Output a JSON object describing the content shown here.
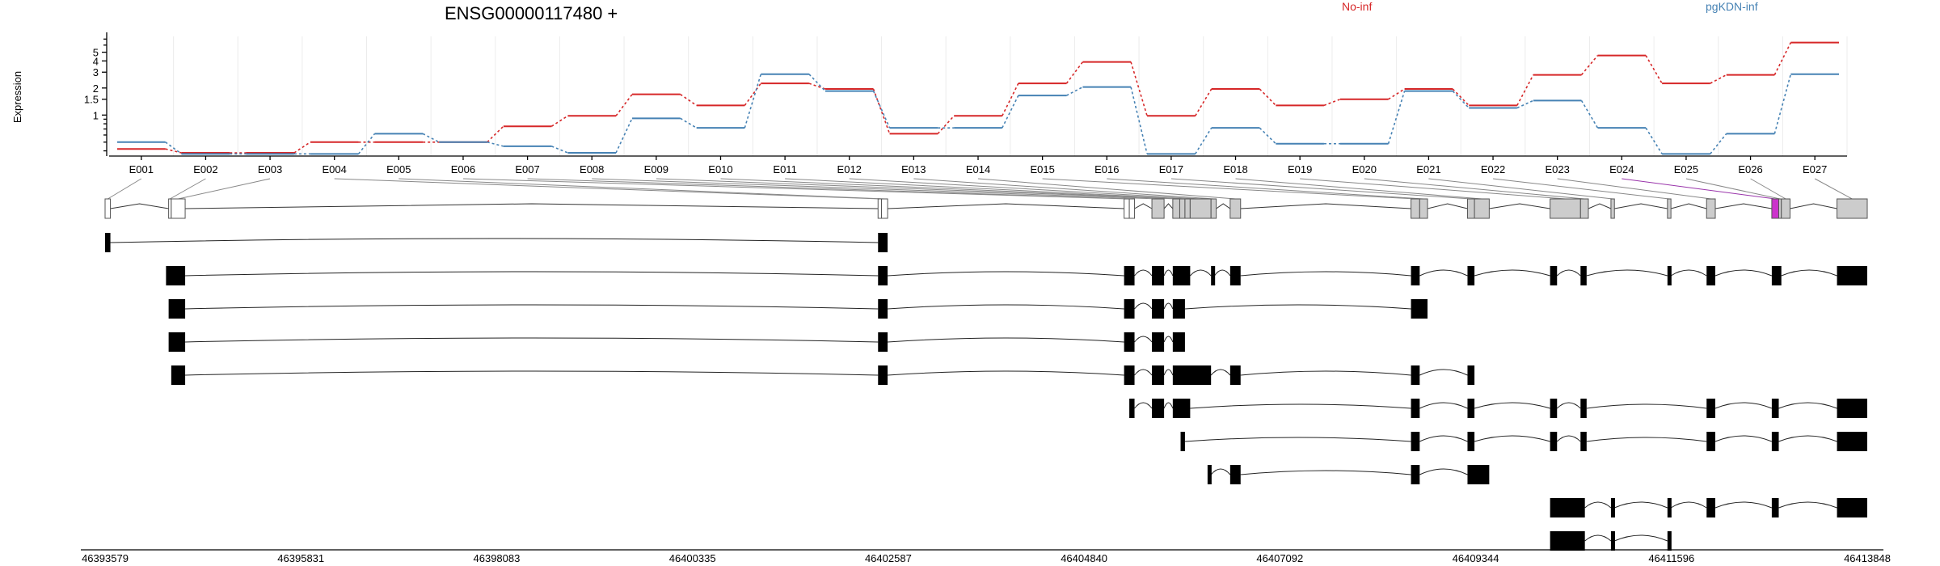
{
  "chart_data": {
    "type": "line",
    "title": "ENSG00000117480 +",
    "ylabel": "Expression",
    "xlabel": "",
    "y_scale": "log",
    "ylim": [
      0.35,
      7.5
    ],
    "y_ticks": [
      {
        "value": 1,
        "label": "1"
      },
      {
        "value": 1.5,
        "label": "1.5"
      },
      {
        "value": 2,
        "label": "2"
      },
      {
        "value": 3,
        "label": "3"
      },
      {
        "value": 4,
        "label": "4"
      },
      {
        "value": 5,
        "label": "5"
      }
    ],
    "categories": [
      "E001",
      "E002",
      "E003",
      "E004",
      "E005",
      "E006",
      "E007",
      "E008",
      "E009",
      "E010",
      "E011",
      "E012",
      "E013",
      "E014",
      "E015",
      "E016",
      "E017",
      "E018",
      "E019",
      "E020",
      "E021",
      "E022",
      "E023",
      "E024",
      "E025",
      "E026",
      "E027"
    ],
    "grid": true,
    "legend_position": "top",
    "series": [
      {
        "name": "No-inf",
        "color": "#d62728",
        "values": [
          0.42,
          0.38,
          0.38,
          0.5,
          0.5,
          0.5,
          0.75,
          0.98,
          1.7,
          1.28,
          2.25,
          1.95,
          0.62,
          0.98,
          2.25,
          3.9,
          0.98,
          1.95,
          1.28,
          1.5,
          1.95,
          1.28,
          2.8,
          4.6,
          2.25,
          2.8,
          6.4
        ]
      },
      {
        "name": "pgKDN-inf",
        "color": "#4682b4",
        "values": [
          0.5,
          0.37,
          0.37,
          0.37,
          0.62,
          0.5,
          0.45,
          0.38,
          0.92,
          0.72,
          2.85,
          1.85,
          0.72,
          0.72,
          1.65,
          2.05,
          0.37,
          0.72,
          0.48,
          0.48,
          1.85,
          1.2,
          1.45,
          0.72,
          0.37,
          0.62,
          2.85
        ]
      }
    ],
    "genomic_axis": {
      "range": [
        46393579,
        46413848
      ],
      "tick_labels": [
        "46393579",
        "46395831",
        "46398083",
        "46400335",
        "46402587",
        "46404840",
        "46407092",
        "46409344",
        "46411596",
        "46413848"
      ]
    },
    "exons": [
      {
        "id": "E001",
        "start": 46393579,
        "end": 46393640,
        "fill": "#ffffff"
      },
      {
        "id": "E002",
        "start": 46394310,
        "end": 46394340,
        "fill": "#ffffff"
      },
      {
        "id": "E003",
        "start": 46394340,
        "end": 46394500,
        "fill": "#ffffff"
      },
      {
        "id": "E004",
        "start": 46402470,
        "end": 46402510,
        "fill": "#ffffff"
      },
      {
        "id": "E005",
        "start": 46402510,
        "end": 46402580,
        "fill": "#ffffff"
      },
      {
        "id": "E006",
        "start": 46405300,
        "end": 46405360,
        "fill": "#ffffff"
      },
      {
        "id": "E007",
        "start": 46405360,
        "end": 46405420,
        "fill": "#ffffff"
      },
      {
        "id": "E008",
        "start": 46405620,
        "end": 46405760,
        "fill": "#cccccc"
      },
      {
        "id": "E009",
        "start": 46405860,
        "end": 46405940,
        "fill": "#cccccc"
      },
      {
        "id": "E010",
        "start": 46405940,
        "end": 46406000,
        "fill": "#cccccc"
      },
      {
        "id": "E011",
        "start": 46406000,
        "end": 46406060,
        "fill": "#cccccc"
      },
      {
        "id": "E012",
        "start": 46406060,
        "end": 46406300,
        "fill": "#cccccc"
      },
      {
        "id": "E013",
        "start": 46406300,
        "end": 46406360,
        "fill": "#cccccc"
      },
      {
        "id": "E014",
        "start": 46406520,
        "end": 46406640,
        "fill": "#cccccc"
      },
      {
        "id": "E015",
        "start": 46408600,
        "end": 46408700,
        "fill": "#cccccc"
      },
      {
        "id": "E016",
        "start": 46408700,
        "end": 46408790,
        "fill": "#cccccc"
      },
      {
        "id": "E017",
        "start": 46409250,
        "end": 46409330,
        "fill": "#cccccc"
      },
      {
        "id": "E018",
        "start": 46409330,
        "end": 46409500,
        "fill": "#cccccc"
      },
      {
        "id": "E019",
        "start": 46410200,
        "end": 46410550,
        "fill": "#cccccc"
      },
      {
        "id": "E020",
        "start": 46410550,
        "end": 46410640,
        "fill": "#cccccc"
      },
      {
        "id": "E021",
        "start": 46410900,
        "end": 46410940,
        "fill": "#cccccc"
      },
      {
        "id": "E022",
        "start": 46411550,
        "end": 46411590,
        "fill": "#cccccc"
      },
      {
        "id": "E023",
        "start": 46412000,
        "end": 46412100,
        "fill": "#cccccc"
      },
      {
        "id": "E024",
        "start": 46412750,
        "end": 46412830,
        "fill": "#cc33cc"
      },
      {
        "id": "E025",
        "start": 46412830,
        "end": 46412860,
        "fill": "#cccccc"
      },
      {
        "id": "E026",
        "start": 46412860,
        "end": 46412960,
        "fill": "#cccccc"
      },
      {
        "id": "E027",
        "start": 46413500,
        "end": 46413848,
        "fill": "#cccccc"
      }
    ],
    "transcripts": [
      [
        [
          46393579,
          46393640
        ],
        [
          46402470,
          46402580
        ]
      ],
      [
        [
          46394280,
          46394500
        ],
        [
          46402470,
          46402580
        ],
        [
          46405300,
          46405420
        ],
        [
          46405620,
          46405760
        ],
        [
          46405860,
          46406060
        ],
        [
          46406300,
          46406340
        ],
        [
          46406520,
          46406640
        ],
        [
          46408600,
          46408700
        ],
        [
          46409250,
          46409330
        ],
        [
          46410200,
          46410280
        ],
        [
          46410550,
          46410620
        ],
        [
          46411550,
          46411590
        ],
        [
          46412000,
          46412100
        ],
        [
          46412750,
          46412860
        ],
        [
          46413500,
          46413848
        ]
      ],
      [
        [
          46394310,
          46394500
        ],
        [
          46402470,
          46402580
        ],
        [
          46405300,
          46405420
        ],
        [
          46405620,
          46405760
        ],
        [
          46405860,
          46406000
        ],
        [
          46408600,
          46408790
        ]
      ],
      [
        [
          46394310,
          46394500
        ],
        [
          46402470,
          46402580
        ],
        [
          46405300,
          46405420
        ],
        [
          46405620,
          46405760
        ],
        [
          46405860,
          46406000
        ]
      ],
      [
        [
          46394340,
          46394500
        ],
        [
          46402470,
          46402580
        ],
        [
          46405300,
          46405420
        ],
        [
          46405620,
          46405760
        ],
        [
          46405860,
          46406300
        ],
        [
          46406520,
          46406640
        ],
        [
          46408600,
          46408700
        ],
        [
          46409250,
          46409330
        ]
      ],
      [
        [
          46405360,
          46405420
        ],
        [
          46405620,
          46405760
        ],
        [
          46405860,
          46406060
        ],
        [
          46408600,
          46408700
        ],
        [
          46409250,
          46409330
        ],
        [
          46410200,
          46410280
        ],
        [
          46410550,
          46410620
        ],
        [
          46412000,
          46412100
        ],
        [
          46412750,
          46412830
        ],
        [
          46413500,
          46413848
        ]
      ],
      [
        [
          46405950,
          46406000
        ],
        [
          46408600,
          46408700
        ],
        [
          46409250,
          46409330
        ],
        [
          46410200,
          46410280
        ],
        [
          46410550,
          46410620
        ],
        [
          46412000,
          46412100
        ],
        [
          46412750,
          46412830
        ],
        [
          46413500,
          46413848
        ]
      ],
      [
        [
          46406260,
          46406300
        ],
        [
          46406520,
          46406640
        ],
        [
          46408600,
          46408700
        ],
        [
          46409250,
          46409500
        ]
      ],
      [
        [
          46410200,
          46410600
        ],
        [
          46410900,
          46410940
        ],
        [
          46411550,
          46411590
        ],
        [
          46412000,
          46412100
        ],
        [
          46412750,
          46412830
        ],
        [
          46413500,
          46413848
        ]
      ],
      [
        [
          46410200,
          46410600
        ],
        [
          46410900,
          46410940
        ],
        [
          46411550,
          46411590
        ]
      ]
    ]
  }
}
